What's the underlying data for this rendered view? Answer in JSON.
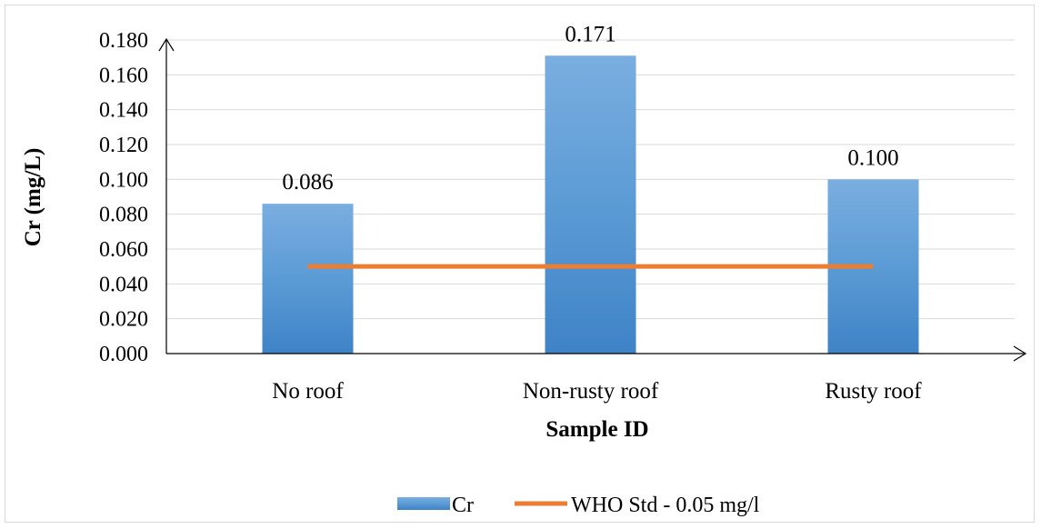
{
  "chart_data": {
    "type": "bar",
    "title": "",
    "xlabel": "Sample ID",
    "ylabel": "Cr (mg/L)",
    "categories": [
      "No roof",
      "Non-rusty roof",
      "Rusty roof"
    ],
    "series": [
      {
        "name": "Cr",
        "kind": "bar",
        "values": [
          0.086,
          0.171,
          0.1
        ],
        "data_labels": [
          "0.086",
          "0.171",
          "0.100"
        ],
        "color": "#5b9bd5"
      },
      {
        "name": "WHO Std - 0.05 mg/l",
        "kind": "line",
        "values": [
          0.05,
          0.05,
          0.05
        ],
        "color": "#ed7d31"
      }
    ],
    "ylim": [
      0,
      0.18
    ],
    "yticks": [
      0,
      0.02,
      0.04,
      0.06,
      0.08,
      0.1,
      0.12,
      0.14,
      0.16,
      0.18
    ],
    "ytick_labels": [
      "0.000",
      "0.020",
      "0.040",
      "0.060",
      "0.080",
      "0.100",
      "0.120",
      "0.140",
      "0.160",
      "0.180"
    ],
    "grid": true,
    "legend_position": "bottom"
  }
}
